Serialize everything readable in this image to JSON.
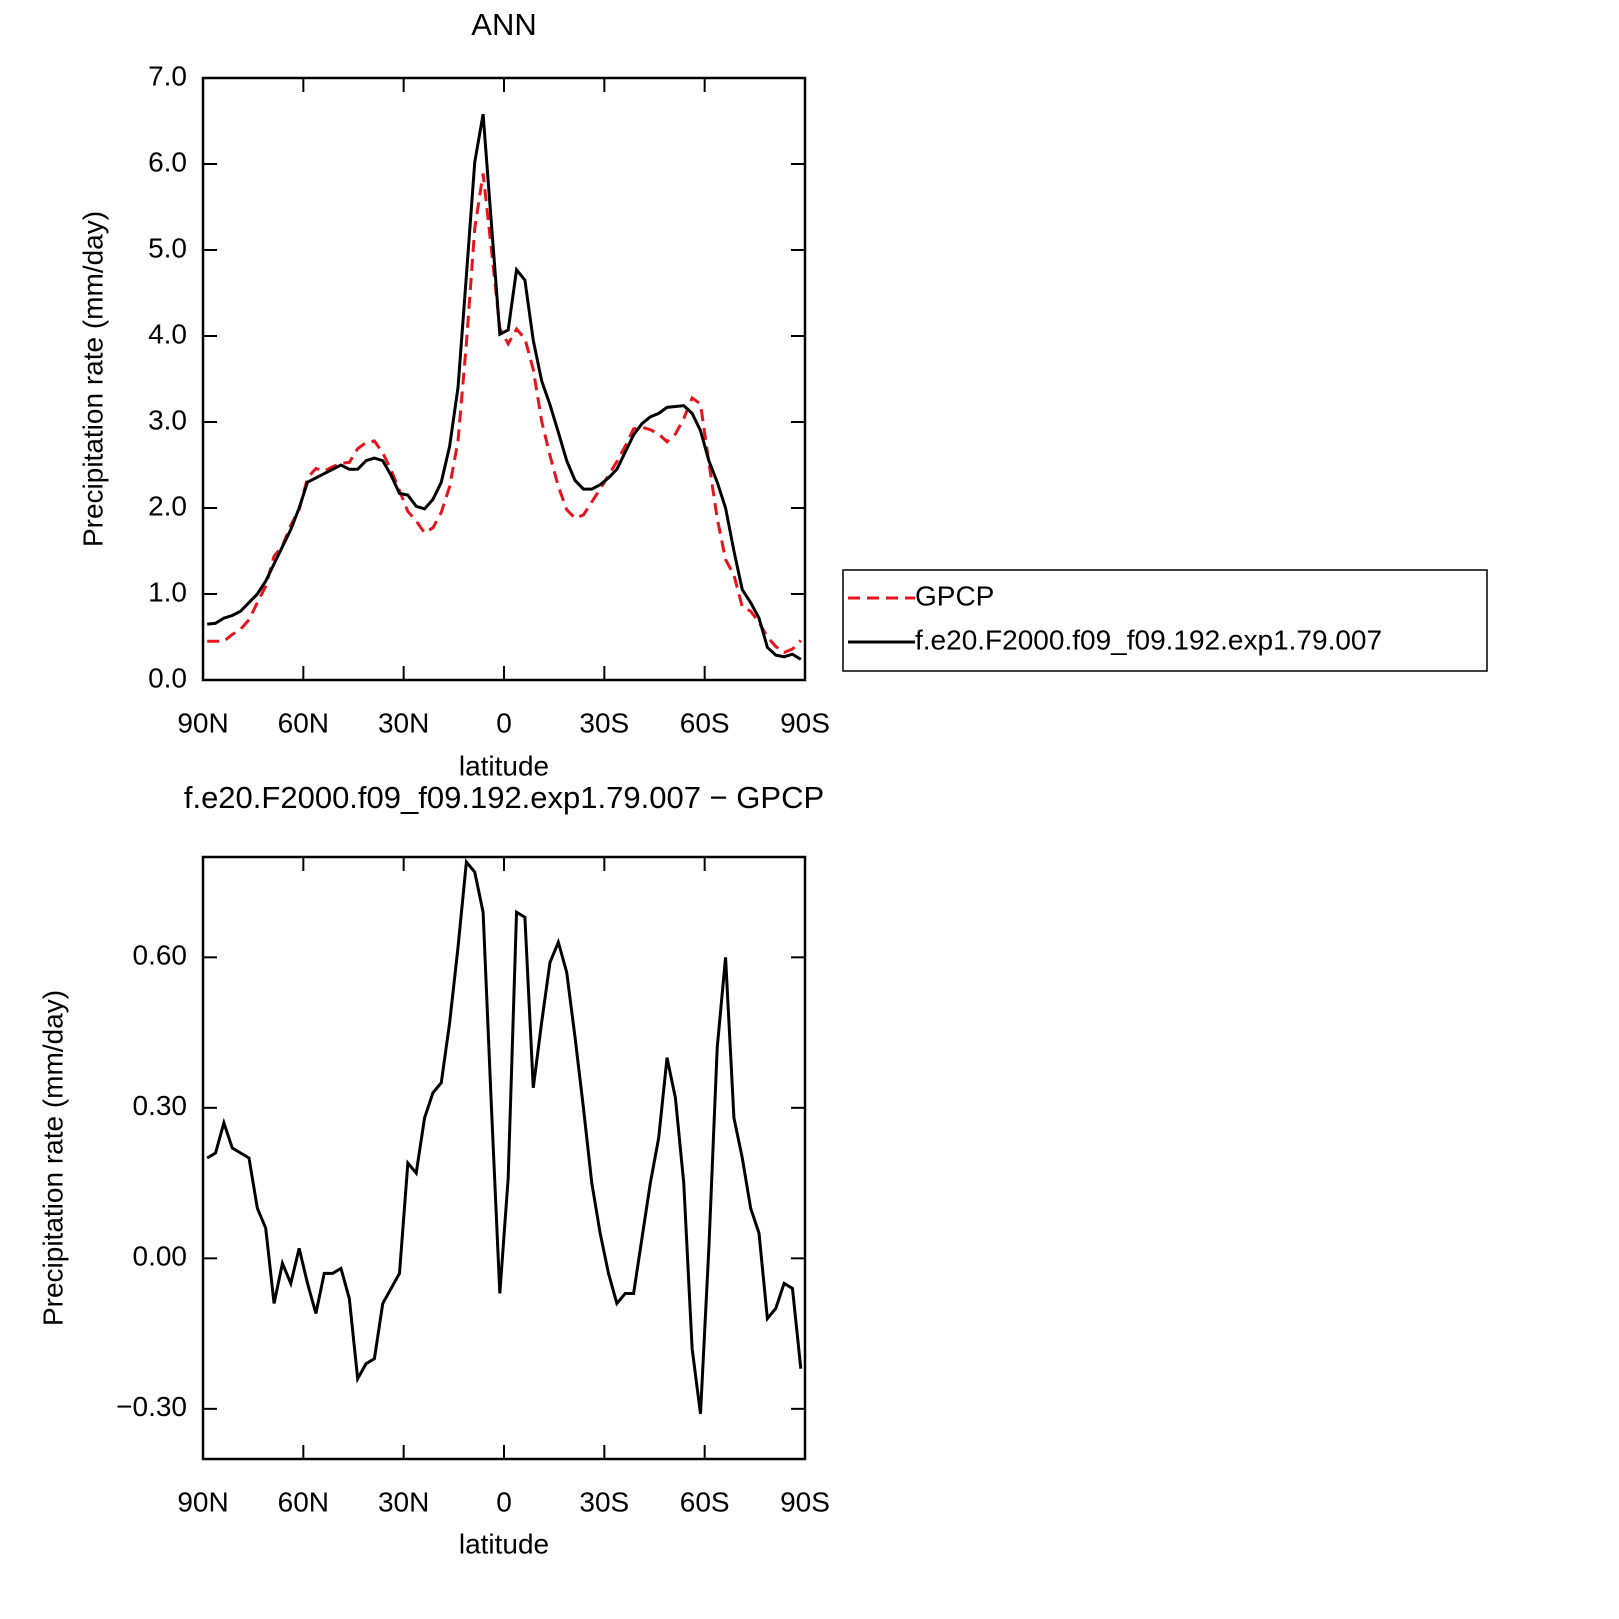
{
  "chart_data": [
    {
      "type": "line",
      "title": "ANN",
      "xlabel": "latitude",
      "ylabel": "Precipitation rate (mm/day)",
      "x": [
        88.75,
        86.25,
        83.75,
        81.25,
        78.75,
        76.25,
        73.75,
        71.25,
        68.75,
        66.25,
        63.75,
        61.25,
        58.75,
        56.25,
        53.75,
        51.25,
        48.75,
        46.25,
        43.75,
        41.25,
        38.75,
        36.25,
        33.75,
        31.25,
        28.75,
        26.25,
        23.75,
        21.25,
        18.75,
        16.25,
        13.75,
        11.25,
        8.75,
        6.25,
        3.75,
        1.25,
        -1.25,
        -3.75,
        -6.25,
        -8.75,
        -11.25,
        -13.75,
        -16.25,
        -18.75,
        -21.25,
        -23.75,
        -26.25,
        -28.75,
        -31.25,
        -33.75,
        -36.25,
        -38.75,
        -41.25,
        -43.75,
        -46.25,
        -48.75,
        -51.25,
        -53.75,
        -56.25,
        -58.75,
        -61.25,
        -63.75,
        -66.25,
        -68.75,
        -71.25,
        -73.75,
        -76.25,
        -78.75,
        -81.25,
        -83.75,
        -86.25,
        -88.75
      ],
      "series": [
        {
          "name": "GPCP",
          "color": "#e8141b",
          "dashed": true,
          "values": [
            0.45,
            0.45,
            0.45,
            0.53,
            0.59,
            0.7,
            0.9,
            1.09,
            1.44,
            1.56,
            1.8,
            1.98,
            2.35,
            2.46,
            2.43,
            2.48,
            2.52,
            2.53,
            2.69,
            2.76,
            2.78,
            2.64,
            2.44,
            2.2,
            1.96,
            1.85,
            1.71,
            1.77,
            1.95,
            2.25,
            2.78,
            3.91,
            5.25,
            5.89,
            5.0,
            4.09,
            3.91,
            4.08,
            3.97,
            3.61,
            3.01,
            2.61,
            2.25,
            1.98,
            1.88,
            1.92,
            2.07,
            2.22,
            2.38,
            2.54,
            2.72,
            2.92,
            2.94,
            2.91,
            2.86,
            2.77,
            2.86,
            3.04,
            3.28,
            3.21,
            2.53,
            1.88,
            1.4,
            1.22,
            0.85,
            0.8,
            0.67,
            0.5,
            0.39,
            0.32,
            0.36,
            0.46
          ]
        },
        {
          "name": "f.e20.F2000.f09_f09.192.exp1.79.007",
          "color": "#000000",
          "dashed": false,
          "values": [
            0.65,
            0.66,
            0.72,
            0.75,
            0.8,
            0.9,
            1.0,
            1.15,
            1.35,
            1.55,
            1.75,
            2.0,
            2.3,
            2.35,
            2.4,
            2.45,
            2.5,
            2.45,
            2.45,
            2.55,
            2.58,
            2.55,
            2.38,
            2.17,
            2.15,
            2.02,
            1.99,
            2.1,
            2.3,
            2.72,
            3.4,
            4.7,
            6.02,
            6.58,
            5.3,
            4.02,
            4.07,
            4.77,
            4.65,
            3.95,
            3.48,
            3.2,
            2.88,
            2.55,
            2.32,
            2.22,
            2.22,
            2.27,
            2.35,
            2.45,
            2.65,
            2.85,
            2.98,
            3.06,
            3.1,
            3.17,
            3.18,
            3.19,
            3.1,
            2.9,
            2.55,
            2.3,
            2.0,
            1.5,
            1.05,
            0.9,
            0.72,
            0.38,
            0.29,
            0.27,
            0.3,
            0.24
          ]
        }
      ],
      "xlim": [
        90,
        -90
      ],
      "xticks": [
        {
          "value": 90,
          "label": "90N"
        },
        {
          "value": 60,
          "label": "60N"
        },
        {
          "value": 30,
          "label": "30N"
        },
        0,
        {
          "value": -30,
          "label": "30S"
        },
        {
          "value": -60,
          "label": "60S"
        },
        {
          "value": -90,
          "label": "90S"
        }
      ],
      "ylim": [
        0,
        7
      ],
      "yticks": [
        {
          "value": 0,
          "label": "0.0"
        },
        {
          "value": 1,
          "label": "1.0"
        },
        {
          "value": 2,
          "label": "2.0"
        },
        {
          "value": 3,
          "label": "3.0"
        },
        {
          "value": 4,
          "label": "4.0"
        },
        {
          "value": 5,
          "label": "5.0"
        },
        {
          "value": 6,
          "label": "6.0"
        },
        {
          "value": 7,
          "label": "7.0"
        }
      ],
      "legend": "right"
    },
    {
      "type": "line",
      "title": "f.e20.F2000.f09_f09.192.exp1.79.007 − GPCP",
      "xlabel": "latitude",
      "ylabel": "Precipitation rate (mm/day)",
      "x": [
        88.75,
        86.25,
        83.75,
        81.25,
        78.75,
        76.25,
        73.75,
        71.25,
        68.75,
        66.25,
        63.75,
        61.25,
        58.75,
        56.25,
        53.75,
        51.25,
        48.75,
        46.25,
        43.75,
        41.25,
        38.75,
        36.25,
        33.75,
        31.25,
        28.75,
        26.25,
        23.75,
        21.25,
        18.75,
        16.25,
        13.75,
        11.25,
        8.75,
        6.25,
        3.75,
        1.25,
        -1.25,
        -3.75,
        -6.25,
        -8.75,
        -11.25,
        -13.75,
        -16.25,
        -18.75,
        -21.25,
        -23.75,
        -26.25,
        -28.75,
        -31.25,
        -33.75,
        -36.25,
        -38.75,
        -41.25,
        -43.75,
        -46.25,
        -48.75,
        -51.25,
        -53.75,
        -56.25,
        -58.75,
        -61.25,
        -63.75,
        -66.25,
        -68.75,
        -71.25,
        -73.75,
        -76.25,
        -78.75,
        -81.25,
        -83.75,
        -86.25,
        -88.75
      ],
      "values": [
        0.2,
        0.21,
        0.27,
        0.22,
        0.21,
        0.2,
        0.1,
        0.06,
        -0.09,
        -0.01,
        -0.05,
        0.02,
        -0.05,
        -0.11,
        -0.03,
        -0.03,
        -0.02,
        -0.08,
        -0.24,
        -0.21,
        -0.2,
        -0.09,
        -0.06,
        -0.03,
        0.19,
        0.17,
        0.28,
        0.33,
        0.35,
        0.47,
        0.62,
        0.79,
        0.77,
        0.69,
        0.3,
        -0.07,
        0.16,
        0.69,
        0.68,
        0.34,
        0.47,
        0.59,
        0.63,
        0.57,
        0.44,
        0.3,
        0.15,
        0.05,
        -0.03,
        -0.09,
        -0.07,
        -0.07,
        0.04,
        0.15,
        0.24,
        0.4,
        0.32,
        0.15,
        -0.18,
        -0.31,
        0.02,
        0.42,
        0.6,
        0.28,
        0.2,
        0.1,
        0.05,
        -0.12,
        -0.1,
        -0.05,
        -0.06,
        -0.22
      ],
      "color": "#000000",
      "xlim": [
        90,
        -90
      ],
      "xticks": [
        {
          "value": 90,
          "label": "90N"
        },
        {
          "value": 60,
          "label": "60N"
        },
        {
          "value": 30,
          "label": "30N"
        },
        0,
        {
          "value": -30,
          "label": "30S"
        },
        {
          "value": -60,
          "label": "60S"
        },
        {
          "value": -90,
          "label": "90S"
        }
      ],
      "ylim": [
        -0.4,
        0.8
      ],
      "yticks": [
        {
          "value": -0.3,
          "label": "−0.30"
        },
        {
          "value": 0,
          "label": "0.00"
        },
        {
          "value": 0.3,
          "label": "0.30"
        },
        {
          "value": 0.6,
          "label": "0.60"
        }
      ]
    }
  ]
}
